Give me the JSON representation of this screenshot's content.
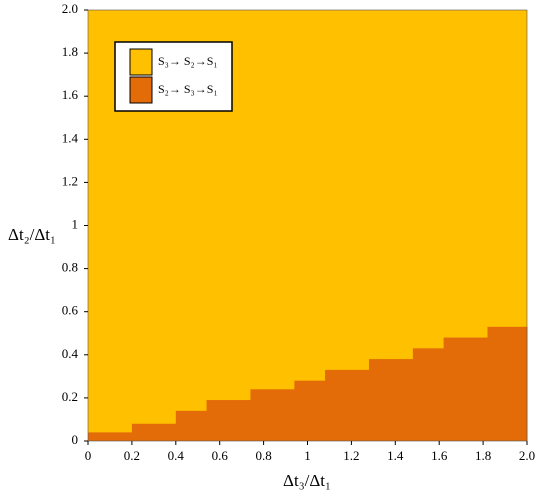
{
  "chart_data": {
    "type": "histogram",
    "x_label": "Δt₃/Δt₁",
    "y_label": "Δt₂/Δt₁",
    "regions": [
      {
        "name": "S₃→ S₂→S₁",
        "color": "#ffc000"
      },
      {
        "name": "S₂→ S₃→S₁",
        "color": "#e36c09"
      }
    ],
    "bins": [
      0,
      0.2,
      0.4,
      0.54,
      0.74,
      0.94,
      1.08,
      1.28,
      1.48,
      1.62,
      1.82,
      2.0
    ],
    "values": [
      0.04,
      0.08,
      0.14,
      0.19,
      0.24,
      0.28,
      0.33,
      0.38,
      0.43,
      0.48,
      0.53
    ],
    "xlim": [
      0,
      2
    ],
    "ylim": [
      0,
      2
    ],
    "xticks": [
      0,
      0.2,
      0.4,
      0.6,
      0.8,
      1,
      1.2,
      1.4,
      1.6,
      1.8,
      {
        "value": 2,
        "label": "2.0"
      }
    ],
    "yticks": [
      0,
      0.2,
      0.4,
      0.6,
      0.8,
      1,
      1.2,
      1.4,
      1.6,
      1.8,
      {
        "value": 2,
        "label": "2.0"
      }
    ]
  }
}
